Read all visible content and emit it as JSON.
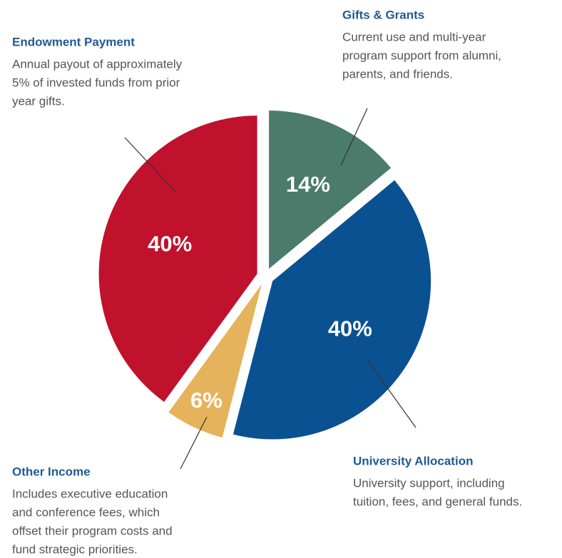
{
  "chart_data": {
    "type": "pie",
    "categories": [
      "Gifts & Grants",
      "University Allocation",
      "Other Income",
      "Endowment Payment"
    ],
    "values": [
      14,
      40,
      6,
      40
    ],
    "value_labels": [
      "14%",
      "40%",
      "6%",
      "40%"
    ],
    "colors": [
      "#4a7b6b",
      "#0a5191",
      "#e4b35b",
      "#c0112d"
    ],
    "descriptions": [
      [
        "Current use and multi-year",
        "program support from alumni,",
        "parents, and friends."
      ],
      [
        "University support, including",
        "tuition, fees, and general funds."
      ],
      [
        "Includes executive education",
        "and conference fees, which",
        "offset their program costs and",
        "fund strategic priorities."
      ],
      [
        "Annual payout of approximately",
        "5% of invested funds from prior",
        "year gifts."
      ]
    ]
  }
}
